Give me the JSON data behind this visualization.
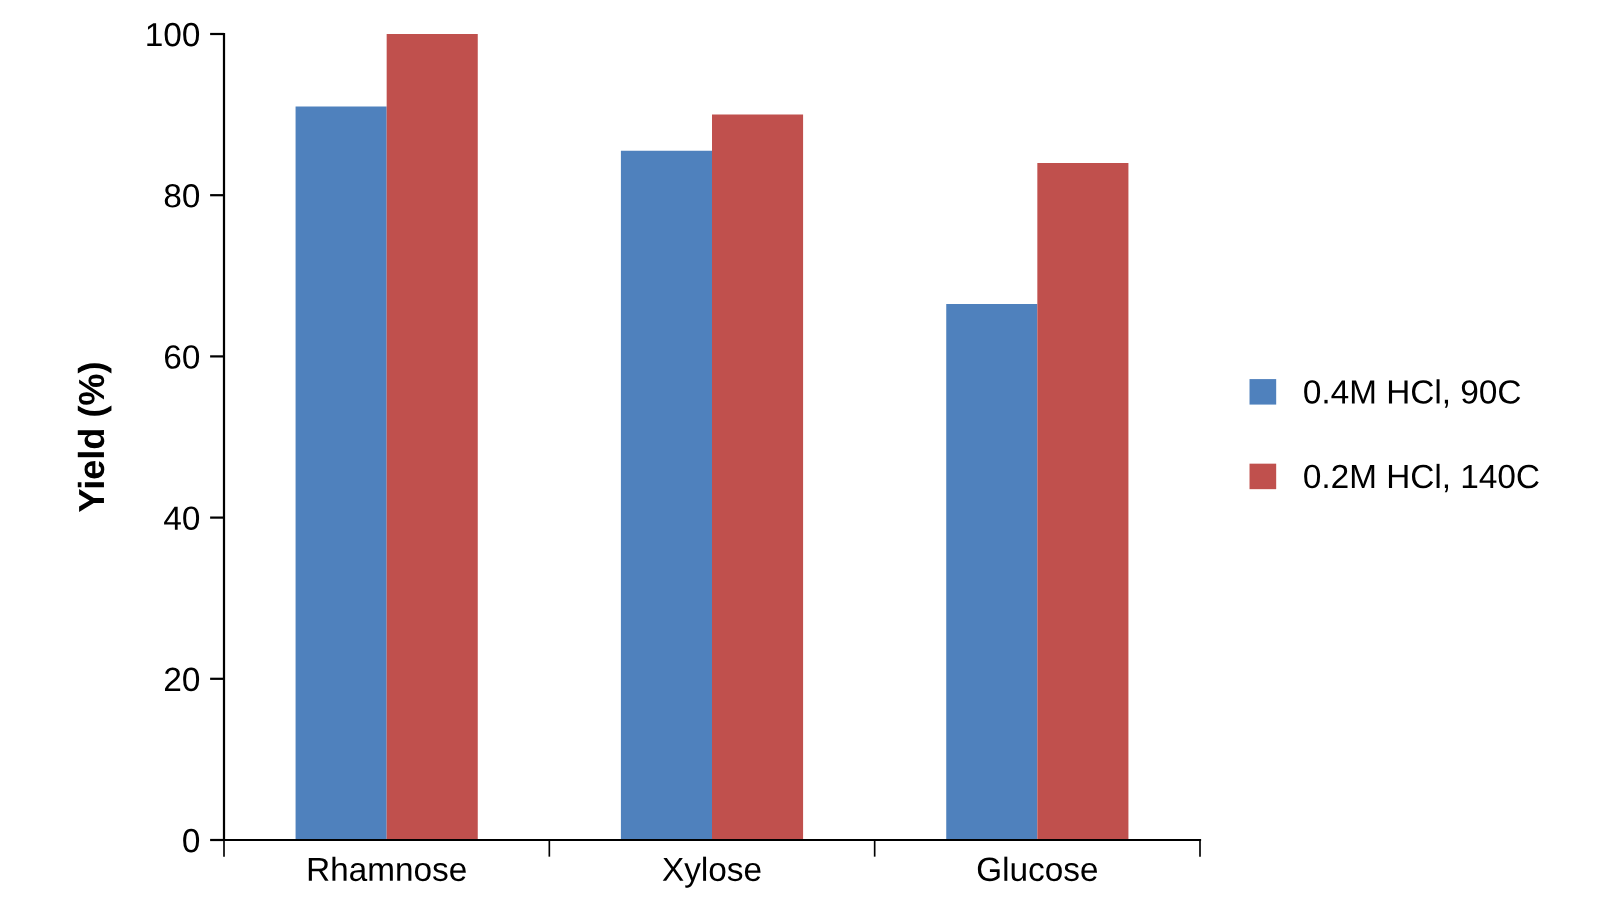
{
  "chart_data": {
    "type": "bar",
    "ylabel": "Yield (%)",
    "categories": [
      "Rhamnose",
      "Xylose",
      "Glucose"
    ],
    "series": [
      {
        "name": "0.4M HCl, 90C",
        "color": "#4f81bd",
        "values": [
          91,
          85.5,
          66.5
        ]
      },
      {
        "name": "0.2M HCl, 140C",
        "color": "#c0504d",
        "values": [
          100,
          90,
          84
        ]
      }
    ],
    "ylim": [
      0,
      100
    ],
    "yticks": [
      0,
      20,
      40,
      60,
      80,
      100
    ],
    "grid": false,
    "legend": "right"
  }
}
